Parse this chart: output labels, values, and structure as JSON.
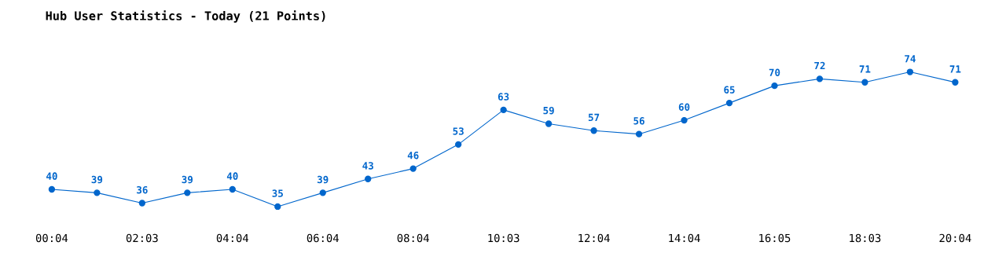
{
  "chart_data": {
    "type": "line",
    "title": "Hub User Statistics - Today (21 Points)",
    "categories": [
      "00:04",
      null,
      "02:03",
      null,
      "04:04",
      null,
      "06:04",
      null,
      "08:04",
      null,
      "10:03",
      null,
      "12:04",
      null,
      "14:04",
      null,
      "16:05",
      null,
      "18:03",
      null,
      "20:04"
    ],
    "series": [
      {
        "color": "#0066cc",
        "values": [
          40,
          39,
          36,
          39,
          40,
          35,
          39,
          43,
          46,
          53,
          63,
          59,
          57,
          56,
          60,
          65,
          70,
          72,
          71,
          74,
          71
        ]
      }
    ],
    "data_labels": true,
    "marker": "circle",
    "line_style": "solid",
    "grid": false,
    "legend": false
  }
}
